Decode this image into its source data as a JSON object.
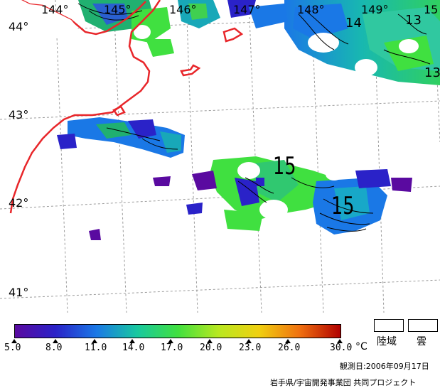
{
  "map": {
    "longitude_labels": [
      "144°",
      "145°",
      "146°",
      "147°",
      "148°",
      "149°",
      "15"
    ],
    "latitude_labels": [
      "44°",
      "43°",
      "42°",
      "41°"
    ],
    "contour_labels": {
      "large_1": "15",
      "large_2": "15",
      "upper_14": "14",
      "upper_13a": "13",
      "upper_13b": "13"
    },
    "colors": {
      "coastline": "#e8262a",
      "grid": "#9c9c9c",
      "contour": "#000000"
    }
  },
  "colorbar": {
    "tick_labels": [
      "5.0",
      "8.0",
      "11.0",
      "14.0",
      "17.0",
      "20.0",
      "23.0",
      "26.0",
      "30.0"
    ],
    "unit": "°C",
    "colors": [
      "#5a0aa0",
      "#2a22c8",
      "#1a78e6",
      "#18c8a0",
      "#40e040",
      "#b8e820",
      "#f0d010",
      "#f07010",
      "#b00000"
    ]
  },
  "legend": {
    "land_label": "陸域",
    "cloud_label": "雲"
  },
  "footer": {
    "observation_date": "観測日:2006年09月17日",
    "credit": "岩手県/宇宙開発事業団 共同プロジェクト"
  }
}
